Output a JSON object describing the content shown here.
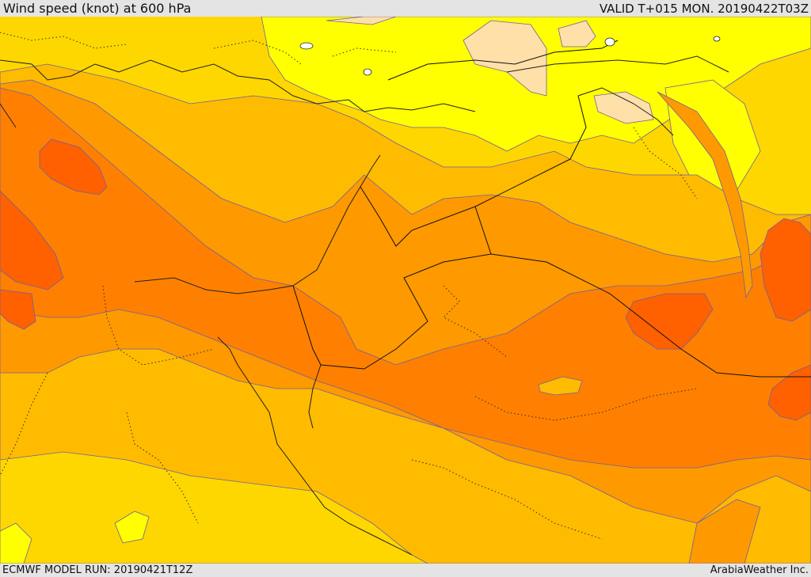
{
  "header": {
    "title": "Wind speed (knot) at 600 hPa",
    "valid": "VALID T+015 MON. 20190422T03Z"
  },
  "footer": {
    "model_run": "ECMWF MODEL RUN: 20190421T12Z",
    "credit": "ArabiaWeather Inc."
  },
  "colors": {
    "calm": "#ffe0a8",
    "light": "#ffff00",
    "moderate": "#ffd700",
    "fresh": "#ffbb00",
    "strong": "#ff9900",
    "gale": "#ff7f00",
    "storm": "#ff6000",
    "contour": "#7060a0",
    "border": "#000000"
  }
}
